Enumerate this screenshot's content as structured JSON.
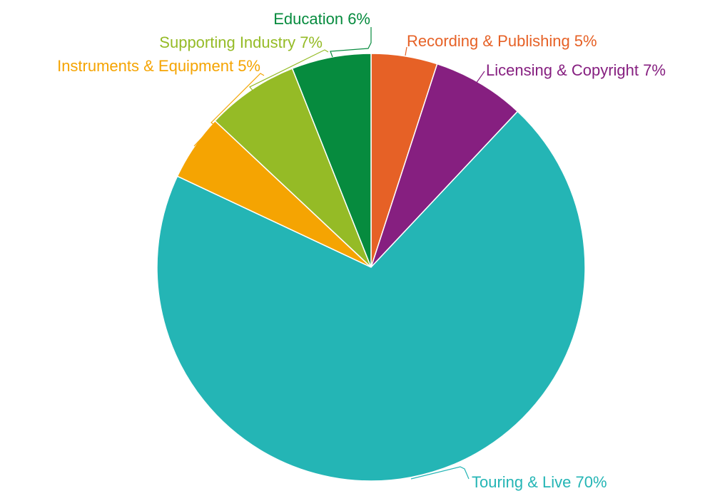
{
  "chart_data": {
    "type": "pie",
    "start_angle_deg": 0,
    "direction": "clockwise",
    "slices": [
      {
        "label": "Recording & Publishing 5%",
        "value": 5,
        "color": "#E66126"
      },
      {
        "label": "Licensing & Copyright 7%",
        "value": 7,
        "color": "#861F80"
      },
      {
        "label": "Touring & Live 70%",
        "value": 70,
        "color": "#24B5B5"
      },
      {
        "label": "Instruments & Equipment 5%",
        "value": 5,
        "color": "#F5A402"
      },
      {
        "label": "Supporting Industry 7%",
        "value": 7,
        "color": "#95BB26"
      },
      {
        "label": "Education 6%",
        "value": 6,
        "color": "#068B3E"
      }
    ]
  }
}
